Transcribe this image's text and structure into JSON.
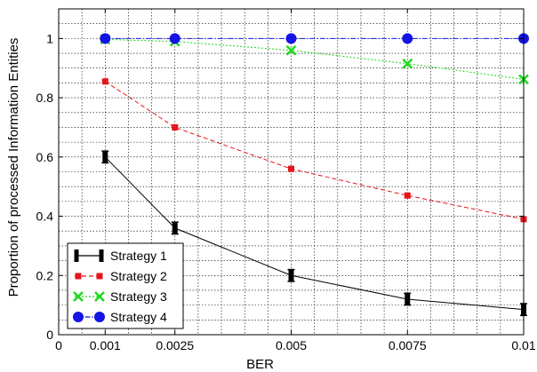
{
  "chart_data": {
    "type": "line",
    "title": "",
    "xlabel": "BER",
    "ylabel": "Proportion of processed Information Entities",
    "xlim": [
      0,
      0.01
    ],
    "ylim": [
      0,
      1.1
    ],
    "grid": true,
    "legend_position": "bottom-left",
    "x_ticks": [
      {
        "value": 0,
        "label": "0"
      },
      {
        "value": 0.001,
        "label": "0.001"
      },
      {
        "value": 0.0025,
        "label": "0.0025"
      },
      {
        "value": 0.005,
        "label": "0.005"
      },
      {
        "value": 0.0075,
        "label": "0.0075"
      },
      {
        "value": 0.01,
        "label": "0.01"
      }
    ],
    "y_ticks": [
      {
        "value": 0,
        "label": "0"
      },
      {
        "value": 0.2,
        "label": "0.2"
      },
      {
        "value": 0.4,
        "label": "0.4"
      },
      {
        "value": 0.6,
        "label": "0.6"
      },
      {
        "value": 0.8,
        "label": "0.8"
      },
      {
        "value": 1,
        "label": "1"
      }
    ],
    "x": [
      0.001,
      0.0025,
      0.005,
      0.0075,
      0.01
    ],
    "series": [
      {
        "name": "Strategy 1",
        "color": "#000000",
        "dash": "solid",
        "marker": "errorbar",
        "values": [
          0.6,
          0.36,
          0.2,
          0.12,
          0.085
        ],
        "errors": [
          0.02,
          0.02,
          0.02,
          0.02,
          0.02
        ]
      },
      {
        "name": "Strategy 2",
        "color": "#e8141c",
        "dash": "dashed",
        "marker": "square",
        "values": [
          0.855,
          0.7,
          0.56,
          0.47,
          0.39
        ]
      },
      {
        "name": "Strategy 3",
        "color": "#1ed81e",
        "dash": "dotted",
        "marker": "cross",
        "values": [
          0.997,
          0.99,
          0.96,
          0.915,
          0.862
        ]
      },
      {
        "name": "Strategy 4",
        "color": "#1414e6",
        "dash": "dashdot",
        "marker": "circle",
        "values": [
          1.0,
          1.0,
          1.0,
          1.0,
          1.0
        ]
      }
    ]
  }
}
